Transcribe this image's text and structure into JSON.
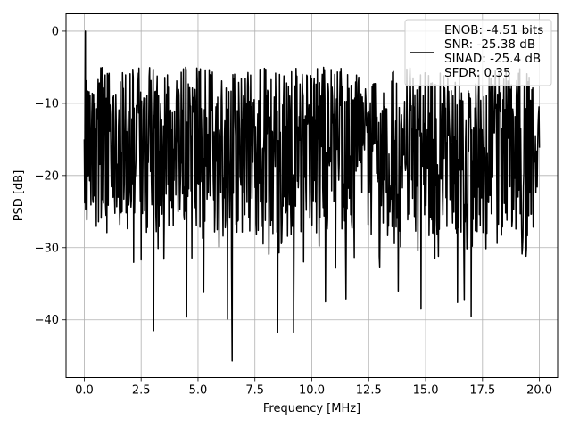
{
  "chart_data": {
    "type": "line",
    "title": "",
    "xlabel": "Frequency [MHz]",
    "ylabel": "PSD [dB]",
    "xlim": [
      -0.8,
      20.8
    ],
    "ylim": [
      -48,
      2.4
    ],
    "xticks": [
      0,
      2.5,
      5,
      7.5,
      10,
      12.5,
      15,
      17.5,
      20
    ],
    "xtick_labels": [
      "0.0",
      "2.5",
      "5.0",
      "7.5",
      "10.0",
      "12.5",
      "15.0",
      "17.5",
      "20.0"
    ],
    "yticks": [
      0,
      -10,
      -20,
      -30,
      -40
    ],
    "ytick_labels": [
      "0",
      "−10",
      "−20",
      "−30",
      "−40"
    ],
    "grid": true,
    "legend_position": "top-right",
    "series": [
      {
        "name": "ENOB: -4.51 bits\nSNR: -25.38 dB\nSINAD: -25.4 dB\nSFDR: 0.35",
        "color": "#000000",
        "x_range": [
          0,
          20
        ],
        "points": 1024,
        "peak": {
          "x": 0.05,
          "y": 0
        },
        "envelope_upper_approx": -5,
        "envelope_lower_approx": -30,
        "notable_dips": [
          {
            "x": 3.05,
            "y": -41.5
          },
          {
            "x": 4.5,
            "y": -39.6
          },
          {
            "x": 5.25,
            "y": -36.2
          },
          {
            "x": 6.3,
            "y": -39.9
          },
          {
            "x": 6.5,
            "y": -45.7
          },
          {
            "x": 8.5,
            "y": -41.8
          },
          {
            "x": 9.2,
            "y": -41.7
          },
          {
            "x": 10.6,
            "y": -37.5
          },
          {
            "x": 11.5,
            "y": -37.1
          },
          {
            "x": 13.8,
            "y": -36.0
          },
          {
            "x": 14.8,
            "y": -38.5
          },
          {
            "x": 16.4,
            "y": -37.6
          },
          {
            "x": 16.7,
            "y": -37.3
          },
          {
            "x": 17.0,
            "y": -39.5
          }
        ]
      }
    ]
  }
}
